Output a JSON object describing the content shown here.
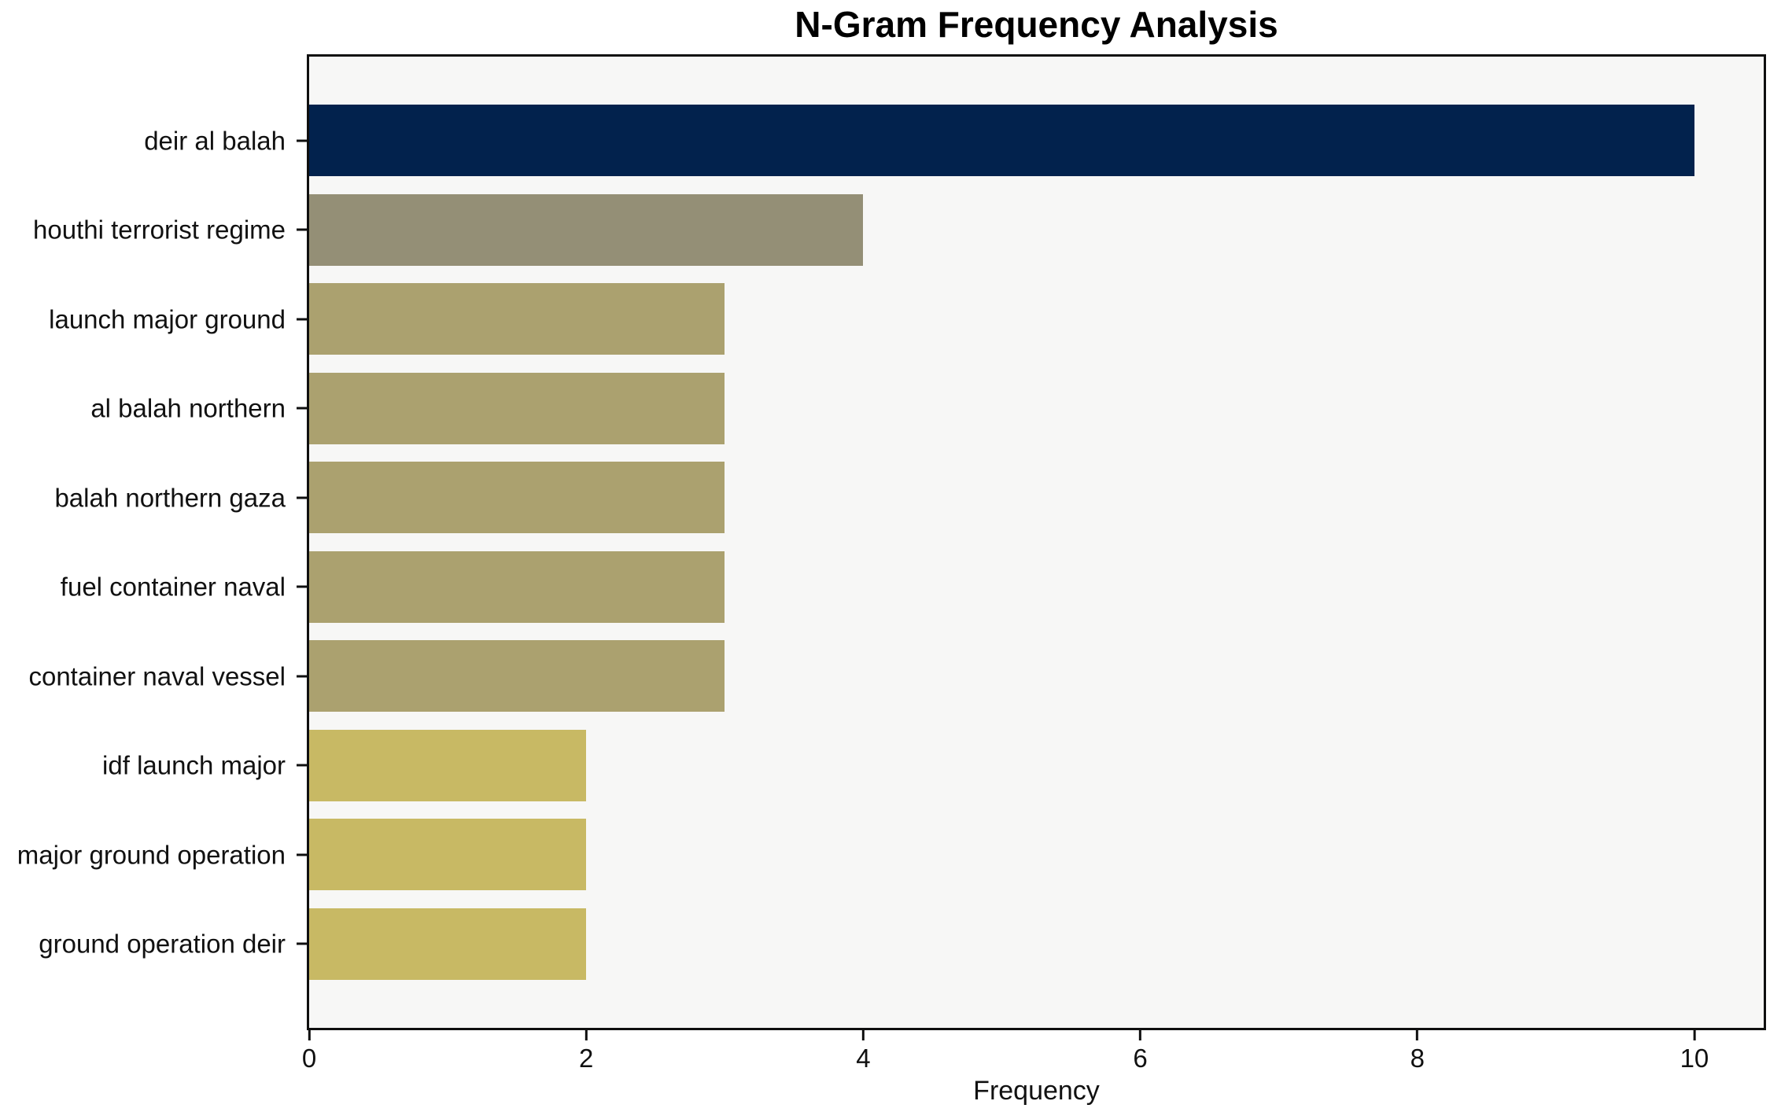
{
  "chart": {
    "title": "N-Gram Frequency Analysis",
    "xlabel": "Frequency"
  },
  "chart_data": {
    "type": "bar",
    "orientation": "horizontal",
    "title": "N-Gram Frequency Analysis",
    "xlabel": "Frequency",
    "ylabel": "",
    "categories": [
      "deir al balah",
      "houthi terrorist regime",
      "launch major ground",
      "al balah northern",
      "balah northern gaza",
      "fuel container naval",
      "container naval vessel",
      "idf launch major",
      "major ground operation",
      "ground operation deir"
    ],
    "values": [
      10,
      4,
      3,
      3,
      3,
      3,
      3,
      2,
      2,
      2
    ],
    "bar_colors": [
      "#02224d",
      "#948f76",
      "#aba16f",
      "#aba16f",
      "#aba16f",
      "#aba16f",
      "#aba16f",
      "#c8b964",
      "#c8b964",
      "#c8b964"
    ],
    "xlim": [
      0,
      10.5
    ],
    "xticks": [
      0,
      2,
      4,
      6,
      8,
      10
    ],
    "grid": false,
    "legend": null,
    "plot_bg": "#f7f7f6",
    "frame_color": "#0f0f0f"
  }
}
